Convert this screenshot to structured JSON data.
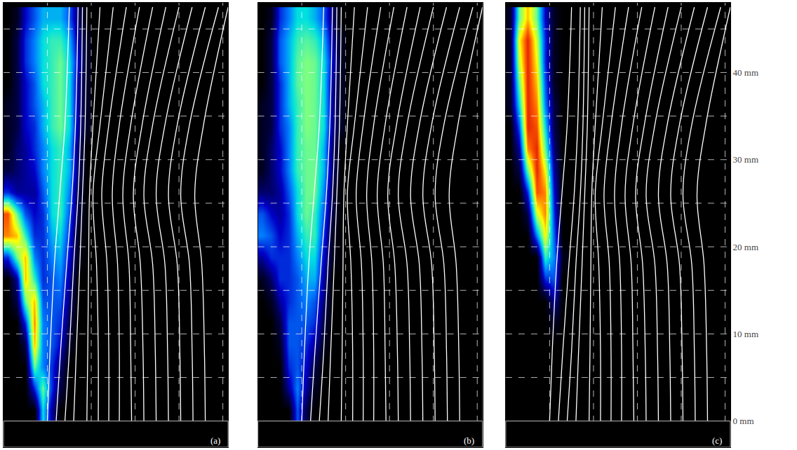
{
  "chart_data": {
    "type": "heatmap",
    "xlim": [
      0,
      25.6
    ],
    "ylim": [
      -3,
      48
    ],
    "yticks": [
      {
        "value": 0,
        "label": "0 mm"
      },
      {
        "value": 10,
        "label": "10 mm"
      },
      {
        "value": 20,
        "label": "20 mm"
      },
      {
        "value": 30,
        "label": "30 mm"
      },
      {
        "value": 40,
        "label": "40 mm"
      }
    ],
    "tick_labels": "y",
    "grid": true,
    "grid_x": [
      5,
      10,
      15,
      20,
      25
    ],
    "grid_y": [
      5,
      10,
      15,
      20,
      25,
      30,
      35,
      40,
      45
    ],
    "zlim": [
      0,
      1
    ],
    "x": [
      0.5,
      1.5,
      2.5,
      3.5,
      4.5,
      5.5,
      6.5,
      7.5,
      8.5,
      9.5
    ],
    "y": [
      1.25,
      3.75,
      6.25,
      8.75,
      11.25,
      13.75,
      16.25,
      18.75,
      21.25,
      23.75,
      26.25,
      28.75,
      31.25,
      33.75,
      36.25,
      38.75,
      41.25,
      43.75,
      46.25
    ],
    "streamlines": [
      {
        "x": [
          5.0,
          5.3,
          5.8,
          6.4,
          7.0,
          7.5
        ],
        "y": [
          0,
          8,
          18,
          26,
          34,
          47.5
        ]
      },
      {
        "x": [
          6.0,
          6.5,
          7.2,
          7.8,
          8.2,
          8.5
        ],
        "y": [
          0,
          8,
          18,
          26,
          34,
          47.5
        ]
      },
      {
        "x": [
          7.0,
          7.5,
          8.0,
          8.5,
          8.8,
          9.0
        ],
        "y": [
          0,
          8,
          18,
          26,
          34,
          47.5
        ]
      },
      {
        "x": [
          8.0,
          8.3,
          8.7,
          9.0,
          9.3,
          9.5
        ],
        "y": [
          0,
          8,
          18,
          26,
          34,
          47.5
        ]
      },
      {
        "x": [
          9.5,
          9.6,
          9.7,
          9.8,
          10.2,
          11.0
        ],
        "y": [
          0,
          8,
          18,
          26,
          34,
          47.5
        ]
      },
      {
        "x": [
          10.8,
          10.8,
          10.6,
          10.2,
          11.0,
          12.5
        ],
        "y": [
          0,
          8,
          18,
          26,
          34,
          47.5
        ]
      },
      {
        "x": [
          12.0,
          12.0,
          11.8,
          11.2,
          12.0,
          14.0
        ],
        "y": [
          0,
          8,
          18,
          26,
          34,
          47.5
        ]
      },
      {
        "x": [
          13.2,
          13.2,
          13.0,
          12.4,
          13.2,
          15.5
        ],
        "y": [
          0,
          8,
          18,
          26,
          34,
          47.5
        ]
      },
      {
        "x": [
          14.6,
          14.5,
          14.3,
          13.6,
          14.5,
          17.0
        ],
        "y": [
          0,
          8,
          18,
          26,
          34,
          47.5
        ]
      },
      {
        "x": [
          16.0,
          15.9,
          15.6,
          14.8,
          15.8,
          18.5
        ],
        "y": [
          0,
          8,
          18,
          26,
          34,
          47.5
        ]
      },
      {
        "x": [
          17.4,
          17.3,
          17.0,
          16.0,
          17.0,
          20.0
        ],
        "y": [
          0,
          8,
          18,
          26,
          34,
          47.5
        ]
      },
      {
        "x": [
          18.8,
          18.7,
          18.4,
          17.4,
          18.4,
          21.5
        ],
        "y": [
          0,
          8,
          18,
          26,
          34,
          47.5
        ]
      },
      {
        "x": [
          20.2,
          20.1,
          19.8,
          18.8,
          19.8,
          23.0
        ],
        "y": [
          0,
          8,
          18,
          26,
          34,
          47.5
        ]
      },
      {
        "x": [
          21.6,
          21.5,
          21.2,
          20.2,
          21.2,
          24.5
        ],
        "y": [
          0,
          8,
          18,
          26,
          34,
          47.5
        ]
      },
      {
        "x": [
          23.0,
          22.9,
          22.6,
          21.8,
          22.8,
          25.6
        ],
        "y": [
          0,
          8,
          18,
          26,
          34,
          47.5
        ]
      }
    ],
    "panels": [
      {
        "label": "(a)",
        "z": [
          [
            0,
            0,
            0,
            0,
            0.5,
            0.2,
            0,
            0,
            0,
            0
          ],
          [
            0,
            0,
            0,
            0.3,
            0.6,
            0.3,
            0.1,
            0,
            0,
            0
          ],
          [
            0,
            0,
            0,
            0.6,
            0.4,
            0.3,
            0.15,
            0,
            0,
            0
          ],
          [
            0,
            0,
            0.1,
            0.8,
            0.4,
            0.35,
            0.25,
            0.05,
            0,
            0
          ],
          [
            0,
            0,
            0.3,
            0.85,
            0.4,
            0.35,
            0.3,
            0.1,
            0,
            0
          ],
          [
            0,
            0.1,
            0.6,
            0.8,
            0.35,
            0.35,
            0.35,
            0.15,
            0,
            0
          ],
          [
            0,
            0.2,
            0.8,
            0.55,
            0.3,
            0.35,
            0.4,
            0.2,
            0,
            0
          ],
          [
            0.3,
            0.6,
            0.8,
            0.4,
            0.3,
            0.4,
            0.45,
            0.25,
            0.05,
            0
          ],
          [
            0.85,
            0.8,
            0.55,
            0.3,
            0.3,
            0.45,
            0.5,
            0.3,
            0.05,
            0
          ],
          [
            0.9,
            0.6,
            0.35,
            0.25,
            0.3,
            0.5,
            0.55,
            0.35,
            0.1,
            0
          ],
          [
            0.3,
            0.2,
            0.2,
            0.2,
            0.35,
            0.5,
            0.55,
            0.4,
            0.1,
            0
          ],
          [
            0.1,
            0.15,
            0.2,
            0.25,
            0.4,
            0.5,
            0.55,
            0.45,
            0.15,
            0
          ],
          [
            0.05,
            0.15,
            0.2,
            0.3,
            0.4,
            0.5,
            0.55,
            0.45,
            0.15,
            0
          ],
          [
            0.05,
            0.1,
            0.25,
            0.3,
            0.45,
            0.55,
            0.6,
            0.5,
            0.2,
            0.05
          ],
          [
            0.05,
            0.1,
            0.25,
            0.35,
            0.45,
            0.55,
            0.6,
            0.5,
            0.2,
            0.05
          ],
          [
            0,
            0.1,
            0.25,
            0.35,
            0.5,
            0.55,
            0.6,
            0.5,
            0.2,
            0.05
          ],
          [
            0,
            0.1,
            0.3,
            0.4,
            0.5,
            0.55,
            0.6,
            0.5,
            0.25,
            0.05
          ],
          [
            0,
            0.1,
            0.3,
            0.4,
            0.5,
            0.55,
            0.55,
            0.45,
            0.2,
            0.05
          ],
          [
            0,
            0.05,
            0.25,
            0.35,
            0.45,
            0.45,
            0.45,
            0.35,
            0.15,
            0
          ]
        ]
      },
      {
        "label": "(b)",
        "z": [
          [
            0,
            0,
            0,
            0,
            0.35,
            0.1,
            0,
            0,
            0,
            0
          ],
          [
            0,
            0,
            0,
            0.2,
            0.4,
            0.2,
            0.05,
            0,
            0,
            0
          ],
          [
            0,
            0,
            0,
            0.3,
            0.35,
            0.25,
            0.1,
            0,
            0,
            0
          ],
          [
            0,
            0,
            0.05,
            0.35,
            0.35,
            0.3,
            0.2,
            0.05,
            0,
            0
          ],
          [
            0,
            0,
            0.1,
            0.35,
            0.35,
            0.35,
            0.3,
            0.1,
            0,
            0
          ],
          [
            0,
            0.05,
            0.2,
            0.3,
            0.35,
            0.4,
            0.35,
            0.15,
            0,
            0
          ],
          [
            0.05,
            0.15,
            0.3,
            0.3,
            0.35,
            0.45,
            0.45,
            0.2,
            0,
            0
          ],
          [
            0.2,
            0.3,
            0.3,
            0.3,
            0.4,
            0.5,
            0.5,
            0.25,
            0.05,
            0
          ],
          [
            0.4,
            0.35,
            0.25,
            0.3,
            0.45,
            0.55,
            0.55,
            0.3,
            0.05,
            0
          ],
          [
            0.35,
            0.25,
            0.2,
            0.3,
            0.5,
            0.6,
            0.55,
            0.35,
            0.1,
            0
          ],
          [
            0.15,
            0.15,
            0.2,
            0.35,
            0.5,
            0.6,
            0.6,
            0.4,
            0.1,
            0
          ],
          [
            0.05,
            0.15,
            0.25,
            0.4,
            0.55,
            0.6,
            0.6,
            0.45,
            0.15,
            0
          ],
          [
            0.05,
            0.15,
            0.25,
            0.4,
            0.55,
            0.6,
            0.6,
            0.45,
            0.15,
            0
          ],
          [
            0.05,
            0.1,
            0.3,
            0.4,
            0.55,
            0.62,
            0.6,
            0.5,
            0.2,
            0.05
          ],
          [
            0.05,
            0.1,
            0.3,
            0.45,
            0.55,
            0.62,
            0.6,
            0.5,
            0.2,
            0.05
          ],
          [
            0,
            0.1,
            0.3,
            0.45,
            0.58,
            0.62,
            0.6,
            0.5,
            0.2,
            0.05
          ],
          [
            0,
            0.1,
            0.35,
            0.45,
            0.58,
            0.62,
            0.6,
            0.5,
            0.25,
            0.05
          ],
          [
            0,
            0.1,
            0.35,
            0.45,
            0.55,
            0.58,
            0.55,
            0.45,
            0.2,
            0.05
          ],
          [
            0,
            0.05,
            0.3,
            0.4,
            0.5,
            0.5,
            0.45,
            0.35,
            0.15,
            0
          ]
        ]
      },
      {
        "label": "(c)",
        "z": [
          [
            0,
            0,
            0,
            0,
            0,
            0,
            0,
            0,
            0,
            0
          ],
          [
            0,
            0,
            0,
            0,
            0,
            0,
            0,
            0,
            0,
            0
          ],
          [
            0,
            0,
            0,
            0,
            0,
            0,
            0,
            0,
            0,
            0
          ],
          [
            0,
            0,
            0,
            0,
            0,
            0,
            0,
            0,
            0,
            0
          ],
          [
            0,
            0,
            0,
            0,
            0,
            0.05,
            0,
            0,
            0,
            0
          ],
          [
            0,
            0,
            0,
            0,
            0,
            0.2,
            0,
            0,
            0,
            0
          ],
          [
            0,
            0,
            0,
            0,
            0.3,
            0.35,
            0,
            0,
            0,
            0
          ],
          [
            0,
            0,
            0,
            0,
            0.55,
            0.4,
            0.05,
            0,
            0,
            0
          ],
          [
            0,
            0,
            0,
            0.4,
            0.75,
            0.35,
            0,
            0,
            0,
            0
          ],
          [
            0,
            0,
            0.1,
            0.7,
            0.85,
            0.3,
            0,
            0,
            0,
            0
          ],
          [
            0,
            0,
            0.3,
            0.9,
            0.85,
            0.25,
            0,
            0,
            0,
            0
          ],
          [
            0,
            0.1,
            0.6,
            0.95,
            0.75,
            0.2,
            0,
            0,
            0,
            0
          ],
          [
            0,
            0.2,
            0.85,
            0.95,
            0.6,
            0.15,
            0,
            0,
            0,
            0
          ],
          [
            0,
            0.35,
            0.95,
            0.9,
            0.5,
            0.1,
            0,
            0,
            0,
            0
          ],
          [
            0.05,
            0.5,
            0.95,
            0.85,
            0.4,
            0.1,
            0,
            0,
            0,
            0
          ],
          [
            0.05,
            0.6,
            0.95,
            0.8,
            0.35,
            0.05,
            0,
            0,
            0,
            0
          ],
          [
            0.05,
            0.7,
            0.95,
            0.75,
            0.3,
            0.05,
            0,
            0,
            0,
            0
          ],
          [
            0.05,
            0.75,
            0.95,
            0.7,
            0.3,
            0.05,
            0,
            0,
            0,
            0
          ],
          [
            0.05,
            0.6,
            0.8,
            0.6,
            0.25,
            0.05,
            0,
            0,
            0,
            0
          ]
        ]
      }
    ]
  }
}
